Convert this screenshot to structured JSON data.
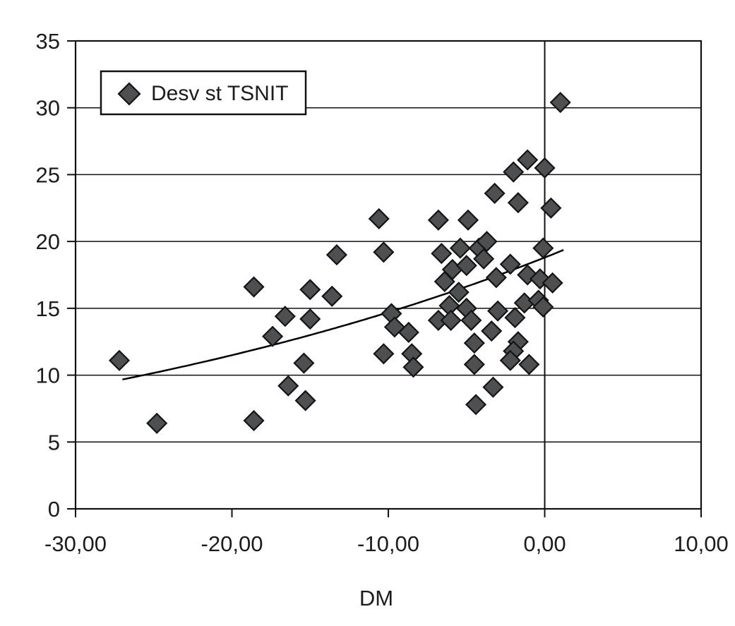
{
  "chart_data": {
    "type": "scatter",
    "title": "",
    "xlabel": "DM",
    "ylabel": "",
    "xlim": [
      -30,
      10
    ],
    "ylim": [
      0,
      35
    ],
    "grid": "horizontal",
    "x_ticks": [
      {
        "value": -30,
        "label": "-30,00"
      },
      {
        "value": -20,
        "label": "-20,00"
      },
      {
        "value": -10,
        "label": "-10,00"
      },
      {
        "value": 0,
        "label": "0,00"
      },
      {
        "value": 10,
        "label": "10,00"
      }
    ],
    "y_ticks": [
      {
        "value": 0,
        "label": "0"
      },
      {
        "value": 5,
        "label": "5"
      },
      {
        "value": 10,
        "label": "10"
      },
      {
        "value": 15,
        "label": "15"
      },
      {
        "value": 20,
        "label": "20"
      },
      {
        "value": 25,
        "label": "25"
      },
      {
        "value": 30,
        "label": "30"
      },
      {
        "value": 35,
        "label": "35"
      }
    ],
    "legend": {
      "position": "top-left",
      "items": [
        {
          "label": "Desv st TSNIT",
          "marker": "diamond"
        }
      ]
    },
    "reference_line_x": 0,
    "colors": {
      "marker_fill": "#4d4f50",
      "marker_stroke": "#141414",
      "line": "#000000",
      "background": "#ffffff"
    },
    "series": [
      {
        "name": "Desv st TSNIT",
        "marker": "diamond",
        "points": [
          [
            -27.2,
            11.1
          ],
          [
            -24.8,
            6.4
          ],
          [
            -18.6,
            6.6
          ],
          [
            -18.6,
            16.6
          ],
          [
            -16.6,
            14.4
          ],
          [
            -17.4,
            12.9
          ],
          [
            -16.4,
            9.2
          ],
          [
            -15.3,
            8.1
          ],
          [
            -15.0,
            16.4
          ],
          [
            -13.6,
            15.9
          ],
          [
            -15.0,
            14.2
          ],
          [
            -15.4,
            10.9
          ],
          [
            -13.3,
            19.0
          ],
          [
            -10.6,
            21.7
          ],
          [
            -10.3,
            19.2
          ],
          [
            -9.8,
            14.6
          ],
          [
            -9.6,
            13.6
          ],
          [
            -8.7,
            13.2
          ],
          [
            -10.3,
            11.6
          ],
          [
            -8.5,
            11.6
          ],
          [
            -8.4,
            10.6
          ],
          [
            -6.8,
            21.6
          ],
          [
            -6.6,
            19.1
          ],
          [
            -4.9,
            21.6
          ],
          [
            -5.9,
            17.9
          ],
          [
            -5.0,
            18.2
          ],
          [
            -6.4,
            17.0
          ],
          [
            -5.5,
            16.2
          ],
          [
            -6.1,
            15.2
          ],
          [
            -5.0,
            15.0
          ],
          [
            -6.8,
            14.1
          ],
          [
            -6.0,
            14.1
          ],
          [
            -4.7,
            14.1
          ],
          [
            -3.0,
            14.8
          ],
          [
            -3.4,
            13.3
          ],
          [
            -4.5,
            12.4
          ],
          [
            -1.7,
            12.5
          ],
          [
            -2.0,
            11.8
          ],
          [
            -4.5,
            10.8
          ],
          [
            -2.2,
            11.1
          ],
          [
            -1.0,
            10.8
          ],
          [
            -3.3,
            9.1
          ],
          [
            -4.4,
            7.8
          ],
          [
            -5.4,
            19.5
          ],
          [
            -4.2,
            19.5
          ],
          [
            -3.7,
            20.0
          ],
          [
            -3.9,
            18.7
          ],
          [
            -3.2,
            23.6
          ],
          [
            -2.2,
            18.3
          ],
          [
            -3.1,
            17.3
          ],
          [
            -1.1,
            17.5
          ],
          [
            -0.3,
            17.2
          ],
          [
            0.5,
            16.9
          ],
          [
            -0.1,
            19.5
          ],
          [
            -1.3,
            15.4
          ],
          [
            -0.4,
            15.6
          ],
          [
            -0.1,
            15.1
          ],
          [
            -1.9,
            14.3
          ],
          [
            -1.1,
            26.1
          ],
          [
            -2.0,
            25.2
          ],
          [
            0.0,
            25.5
          ],
          [
            -1.7,
            22.9
          ],
          [
            0.4,
            22.5
          ],
          [
            1.0,
            30.4
          ]
        ]
      }
    ],
    "trend_line": {
      "model": "exponential",
      "equation": "y = 18.8 * exp(0.0246 * x)",
      "a": 18.8,
      "b": 0.0246,
      "x_range": [
        -27.0,
        1.2
      ]
    }
  }
}
